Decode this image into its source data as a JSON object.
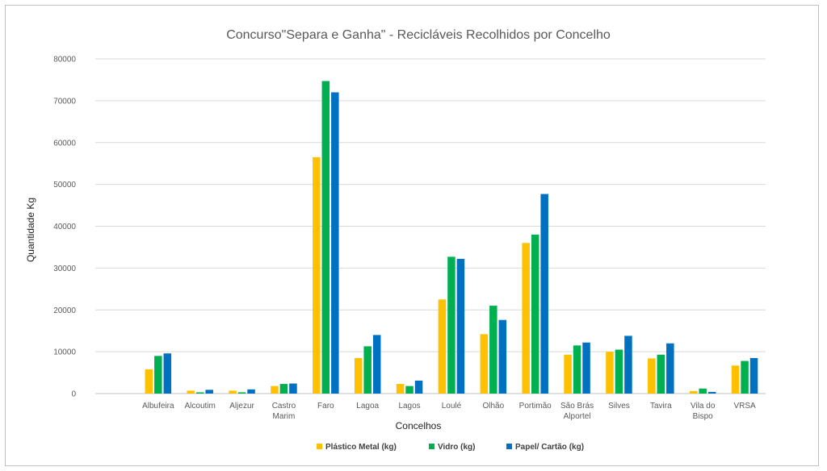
{
  "chart_data": {
    "type": "bar",
    "title": "Concurso\"Separa e Ganha\" - Recicláveis Recolhidos por Concelho",
    "xlabel": "Concelhos",
    "ylabel": "Quantidade Kg",
    "ylim": [
      0,
      80000
    ],
    "yticks": [
      "0",
      "10000",
      "20000",
      "30000",
      "40000",
      "50000",
      "60000",
      "70000",
      "80000"
    ],
    "grid": true,
    "legend_position": "bottom",
    "categories": [
      [
        "Albufeira"
      ],
      [
        "Alcoutim"
      ],
      [
        "Aljezur"
      ],
      [
        "Castro",
        "Marim"
      ],
      [
        "Faro"
      ],
      [
        "Lagoa"
      ],
      [
        "Lagos"
      ],
      [
        "Loulé"
      ],
      [
        "Olhão"
      ],
      [
        "Portimão"
      ],
      [
        "São Brás",
        "Alportel"
      ],
      [
        "Silves"
      ],
      [
        "Tavira"
      ],
      [
        "Vila do",
        "Bispo"
      ],
      [
        "VRSA"
      ]
    ],
    "series": [
      {
        "name": "Plástico Metal (kg)",
        "color": "#FFC000",
        "values": [
          5800,
          700,
          700,
          1800,
          56500,
          8500,
          2300,
          22500,
          14200,
          36000,
          9300,
          10000,
          8400,
          600,
          6700
        ]
      },
      {
        "name": "Vidro (kg)",
        "color": "#00B050",
        "values": [
          9000,
          300,
          300,
          2300,
          74700,
          11300,
          1800,
          32700,
          21000,
          38000,
          11500,
          10500,
          9300,
          1200,
          7800
        ]
      },
      {
        "name": "Papel/ Cartão (kg)",
        "color": "#0070C0",
        "values": [
          9600,
          900,
          1000,
          2400,
          72000,
          14000,
          3100,
          32200,
          17600,
          47700,
          12200,
          13800,
          12000,
          400,
          8500
        ]
      }
    ]
  }
}
